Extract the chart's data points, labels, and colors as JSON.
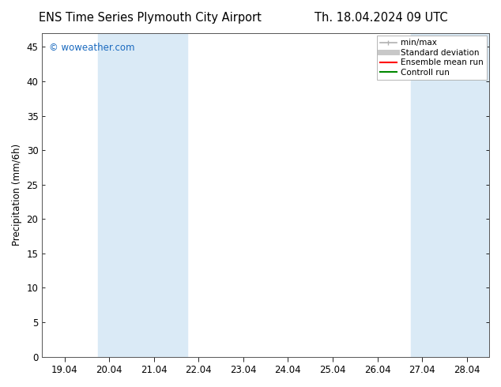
{
  "title_left": "ENS Time Series Plymouth City Airport",
  "title_right": "Th. 18.04.2024 09 UTC",
  "ylabel": "Precipitation (mm/6h)",
  "watermark": "© woweather.com",
  "watermark_color": "#1a6abf",
  "background_color": "#ffffff",
  "plot_bg_color": "#ffffff",
  "ylim": [
    0,
    47
  ],
  "yticks": [
    0,
    5,
    10,
    15,
    20,
    25,
    30,
    35,
    40,
    45
  ],
  "x_labels": [
    "19.04",
    "20.04",
    "21.04",
    "22.04",
    "23.04",
    "24.04",
    "25.04",
    "26.04",
    "27.04",
    "28.04"
  ],
  "x_positions": [
    0,
    1,
    2,
    3,
    4,
    5,
    6,
    7,
    8,
    9
  ],
  "xlim": [
    -0.5,
    9.5
  ],
  "shaded_bands": [
    {
      "xmin": 0.75,
      "xmax": 2.75,
      "color": "#daeaf6"
    },
    {
      "xmin": 7.75,
      "xmax": 9.5,
      "color": "#daeaf6"
    }
  ],
  "legend_entries": [
    {
      "label": "min/max",
      "color": "#b0b0b0",
      "lw": 1.2
    },
    {
      "label": "Standard deviation",
      "color": "#c8c8c8",
      "lw": 5
    },
    {
      "label": "Ensemble mean run",
      "color": "#ff0000",
      "lw": 1.5
    },
    {
      "label": "Controll run",
      "color": "#008800",
      "lw": 1.5
    }
  ],
  "font_family": "DejaVu Sans",
  "title_fontsize": 10.5,
  "tick_fontsize": 8.5,
  "ylabel_fontsize": 8.5,
  "legend_fontsize": 7.5,
  "watermark_fontsize": 8.5
}
